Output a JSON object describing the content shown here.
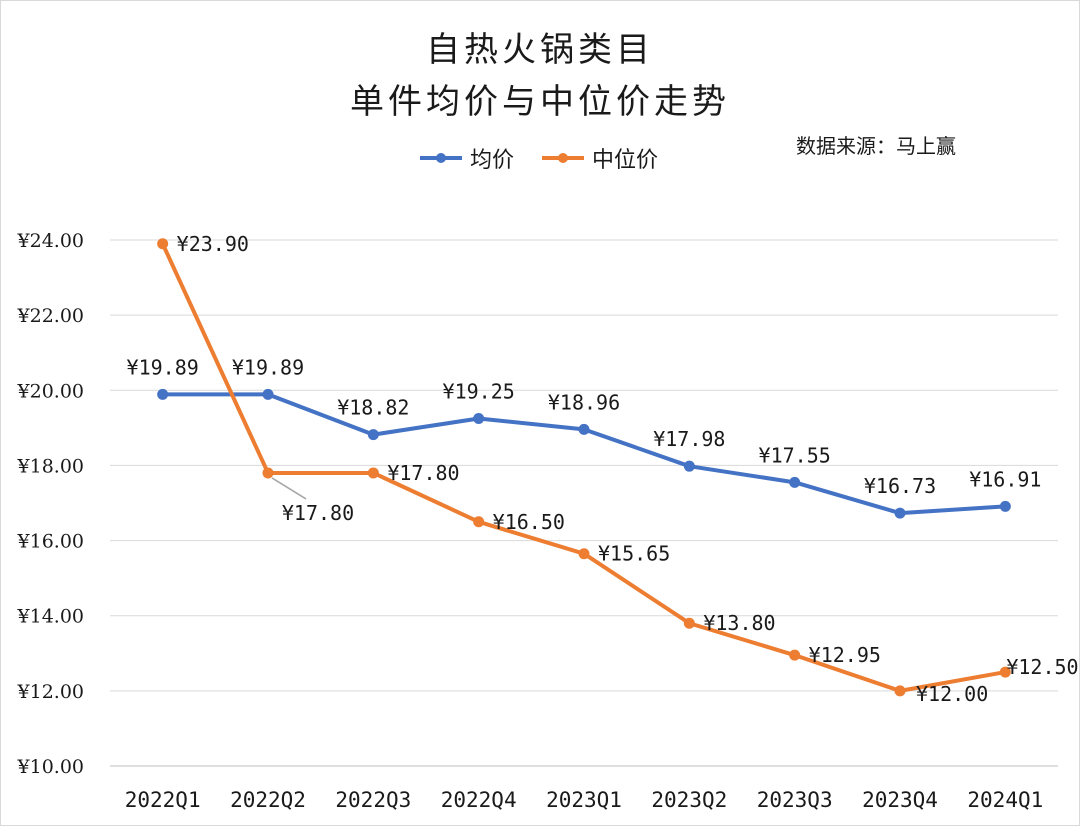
{
  "chart_data": {
    "type": "line",
    "title": "自热火锅类目",
    "subtitle": "单件均价与中位价走势",
    "source_note": "数据来源：马上赢",
    "categories": [
      "2022Q1",
      "2022Q2",
      "2022Q3",
      "2022Q4",
      "2023Q1",
      "2023Q2",
      "2023Q3",
      "2023Q4",
      "2024Q1"
    ],
    "series": [
      {
        "name": "均价",
        "color": "#4472c4",
        "values": [
          19.89,
          19.89,
          18.82,
          19.25,
          18.96,
          17.98,
          17.55,
          16.73,
          16.91
        ],
        "labels": [
          "¥19.89",
          "¥19.89",
          "¥18.82",
          "¥19.25",
          "¥18.96",
          "¥17.98",
          "¥17.55",
          "¥16.73",
          "¥16.91"
        ]
      },
      {
        "name": "中位价",
        "color": "#ed7d31",
        "values": [
          23.9,
          17.8,
          17.8,
          16.5,
          15.65,
          13.8,
          12.95,
          12.0,
          12.5
        ],
        "labels": [
          "¥23.90",
          "¥17.80",
          "¥17.80",
          "¥16.50",
          "¥15.65",
          "¥13.80",
          "¥12.95",
          "¥12.00",
          "¥12.50"
        ]
      }
    ],
    "yticks": [
      "¥10.00",
      "¥12.00",
      "¥14.00",
      "¥16.00",
      "¥18.00",
      "¥20.00",
      "¥22.00",
      "¥24.00"
    ],
    "ylim": [
      10,
      24
    ],
    "xlabel": "",
    "ylabel": "",
    "grid": true,
    "legend_position": "top-center"
  }
}
